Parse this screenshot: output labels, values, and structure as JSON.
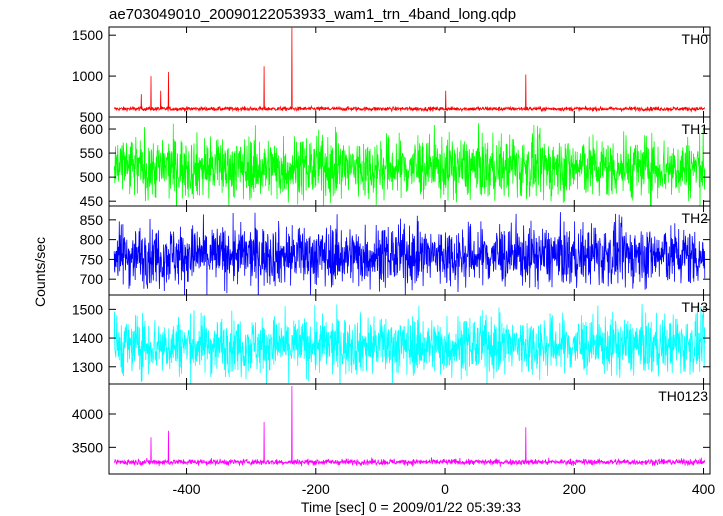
{
  "chart_data": {
    "type": "line",
    "title": "ae703049010_20090122053933_wam1_trn_4band_long.qdp",
    "xlabel": "Time [sec] 0 = 2009/01/22 05:39:33",
    "ylabel": "Counts/sec",
    "xlim": [
      -520,
      410
    ],
    "xticks": [
      -400,
      -200,
      0,
      200,
      400
    ],
    "grid": false,
    "panels": [
      {
        "name": "TH0",
        "color": "#ff0000",
        "ylim": [
          500,
          1600
        ],
        "yticks": [
          500,
          1000,
          1500
        ],
        "baseline": 600,
        "noise": 25,
        "spikes": [
          {
            "x": -470,
            "y": 780
          },
          {
            "x": -455,
            "y": 1000
          },
          {
            "x": -440,
            "y": 820
          },
          {
            "x": -428,
            "y": 1050
          },
          {
            "x": -280,
            "y": 1120
          },
          {
            "x": -237,
            "y": 1590
          },
          {
            "x": 1,
            "y": 820
          },
          {
            "x": 125,
            "y": 1020
          }
        ]
      },
      {
        "name": "TH1",
        "color": "#00ff00",
        "ylim": [
          440,
          625
        ],
        "yticks": [
          450,
          500,
          550,
          600
        ],
        "baseline": 520,
        "noise": 32,
        "spikes": []
      },
      {
        "name": "TH2",
        "color": "#0000ff",
        "ylim": [
          660,
          885
        ],
        "yticks": [
          700,
          750,
          800,
          850
        ],
        "baseline": 760,
        "noise": 38,
        "spikes": []
      },
      {
        "name": "TH3",
        "color": "#00ffff",
        "ylim": [
          1240,
          1550
        ],
        "yticks": [
          1300,
          1400,
          1500
        ],
        "baseline": 1375,
        "noise": 50,
        "spikes": []
      },
      {
        "name": "TH0123",
        "color": "#ff00ff",
        "ylim": [
          3100,
          4450
        ],
        "yticks": [
          3500,
          4000
        ],
        "baseline": 3280,
        "noise": 45,
        "spikes": [
          {
            "x": -455,
            "y": 3650
          },
          {
            "x": -428,
            "y": 3750
          },
          {
            "x": -280,
            "y": 3880
          },
          {
            "x": -237,
            "y": 4420
          },
          {
            "x": 125,
            "y": 3800
          }
        ]
      }
    ]
  }
}
